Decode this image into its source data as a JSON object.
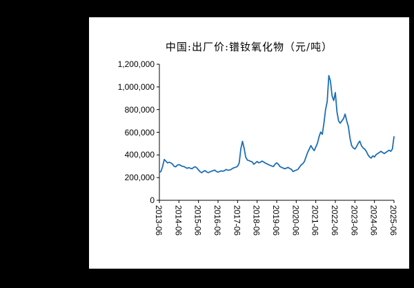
{
  "page": {
    "background_color": "#000000",
    "panel_background_color": "#ffffff"
  },
  "chart_data": {
    "type": "line",
    "title": "中国:出厂价:镨钕氧化物（元/吨）",
    "xlabel": "",
    "ylabel": "",
    "x_start": "2013-06",
    "x_end": "2025-06",
    "frequency": "monthly",
    "x_tick_labels": [
      "2013-06",
      "2014-06",
      "2015-06",
      "2016-06",
      "2017-06",
      "2018-06",
      "2019-06",
      "2020-06",
      "2021-06",
      "2022-06",
      "2023-06",
      "2024-06",
      "2025-06"
    ],
    "y_ticks": [
      0,
      200000,
      400000,
      600000,
      800000,
      1000000,
      1200000
    ],
    "ylim": [
      0,
      1200000
    ],
    "grid": false,
    "legend": "none",
    "line_color": "#1b6db5",
    "axis_color": "#000000",
    "series_name": "中国:出厂价:镨钕氧化物(元/吨)",
    "values": [
      245000,
      255000,
      300000,
      360000,
      345000,
      330000,
      335000,
      330000,
      320000,
      300000,
      295000,
      310000,
      315000,
      308000,
      300000,
      298000,
      290000,
      282000,
      288000,
      283000,
      278000,
      290000,
      296000,
      285000,
      268000,
      252000,
      243000,
      255000,
      262000,
      250000,
      244000,
      250000,
      256000,
      262000,
      266000,
      254000,
      248000,
      254000,
      260000,
      256000,
      262000,
      272000,
      265000,
      266000,
      272000,
      282000,
      288000,
      292000,
      300000,
      330000,
      455000,
      520000,
      460000,
      380000,
      355000,
      350000,
      344000,
      338000,
      318000,
      330000,
      342000,
      330000,
      336000,
      346000,
      338000,
      328000,
      322000,
      314000,
      308000,
      302000,
      298000,
      318000,
      330000,
      318000,
      298000,
      290000,
      284000,
      278000,
      284000,
      290000,
      280000,
      274000,
      254000,
      260000,
      266000,
      272000,
      292000,
      312000,
      322000,
      342000,
      382000,
      422000,
      452000,
      482000,
      458000,
      438000,
      470000,
      502000,
      560000,
      602000,
      582000,
      680000,
      800000,
      870000,
      1100000,
      1050000,
      920000,
      880000,
      950000,
      780000,
      700000,
      680000,
      700000,
      720000,
      760000,
      700000,
      650000,
      548000,
      482000,
      462000,
      452000,
      472000,
      502000,
      522000,
      482000,
      462000,
      452000,
      432000,
      402000,
      382000,
      372000,
      392000,
      382000,
      402000,
      412000,
      422000,
      432000,
      422000,
      412000,
      422000,
      432000,
      442000,
      432000,
      452000,
      560000
    ]
  }
}
